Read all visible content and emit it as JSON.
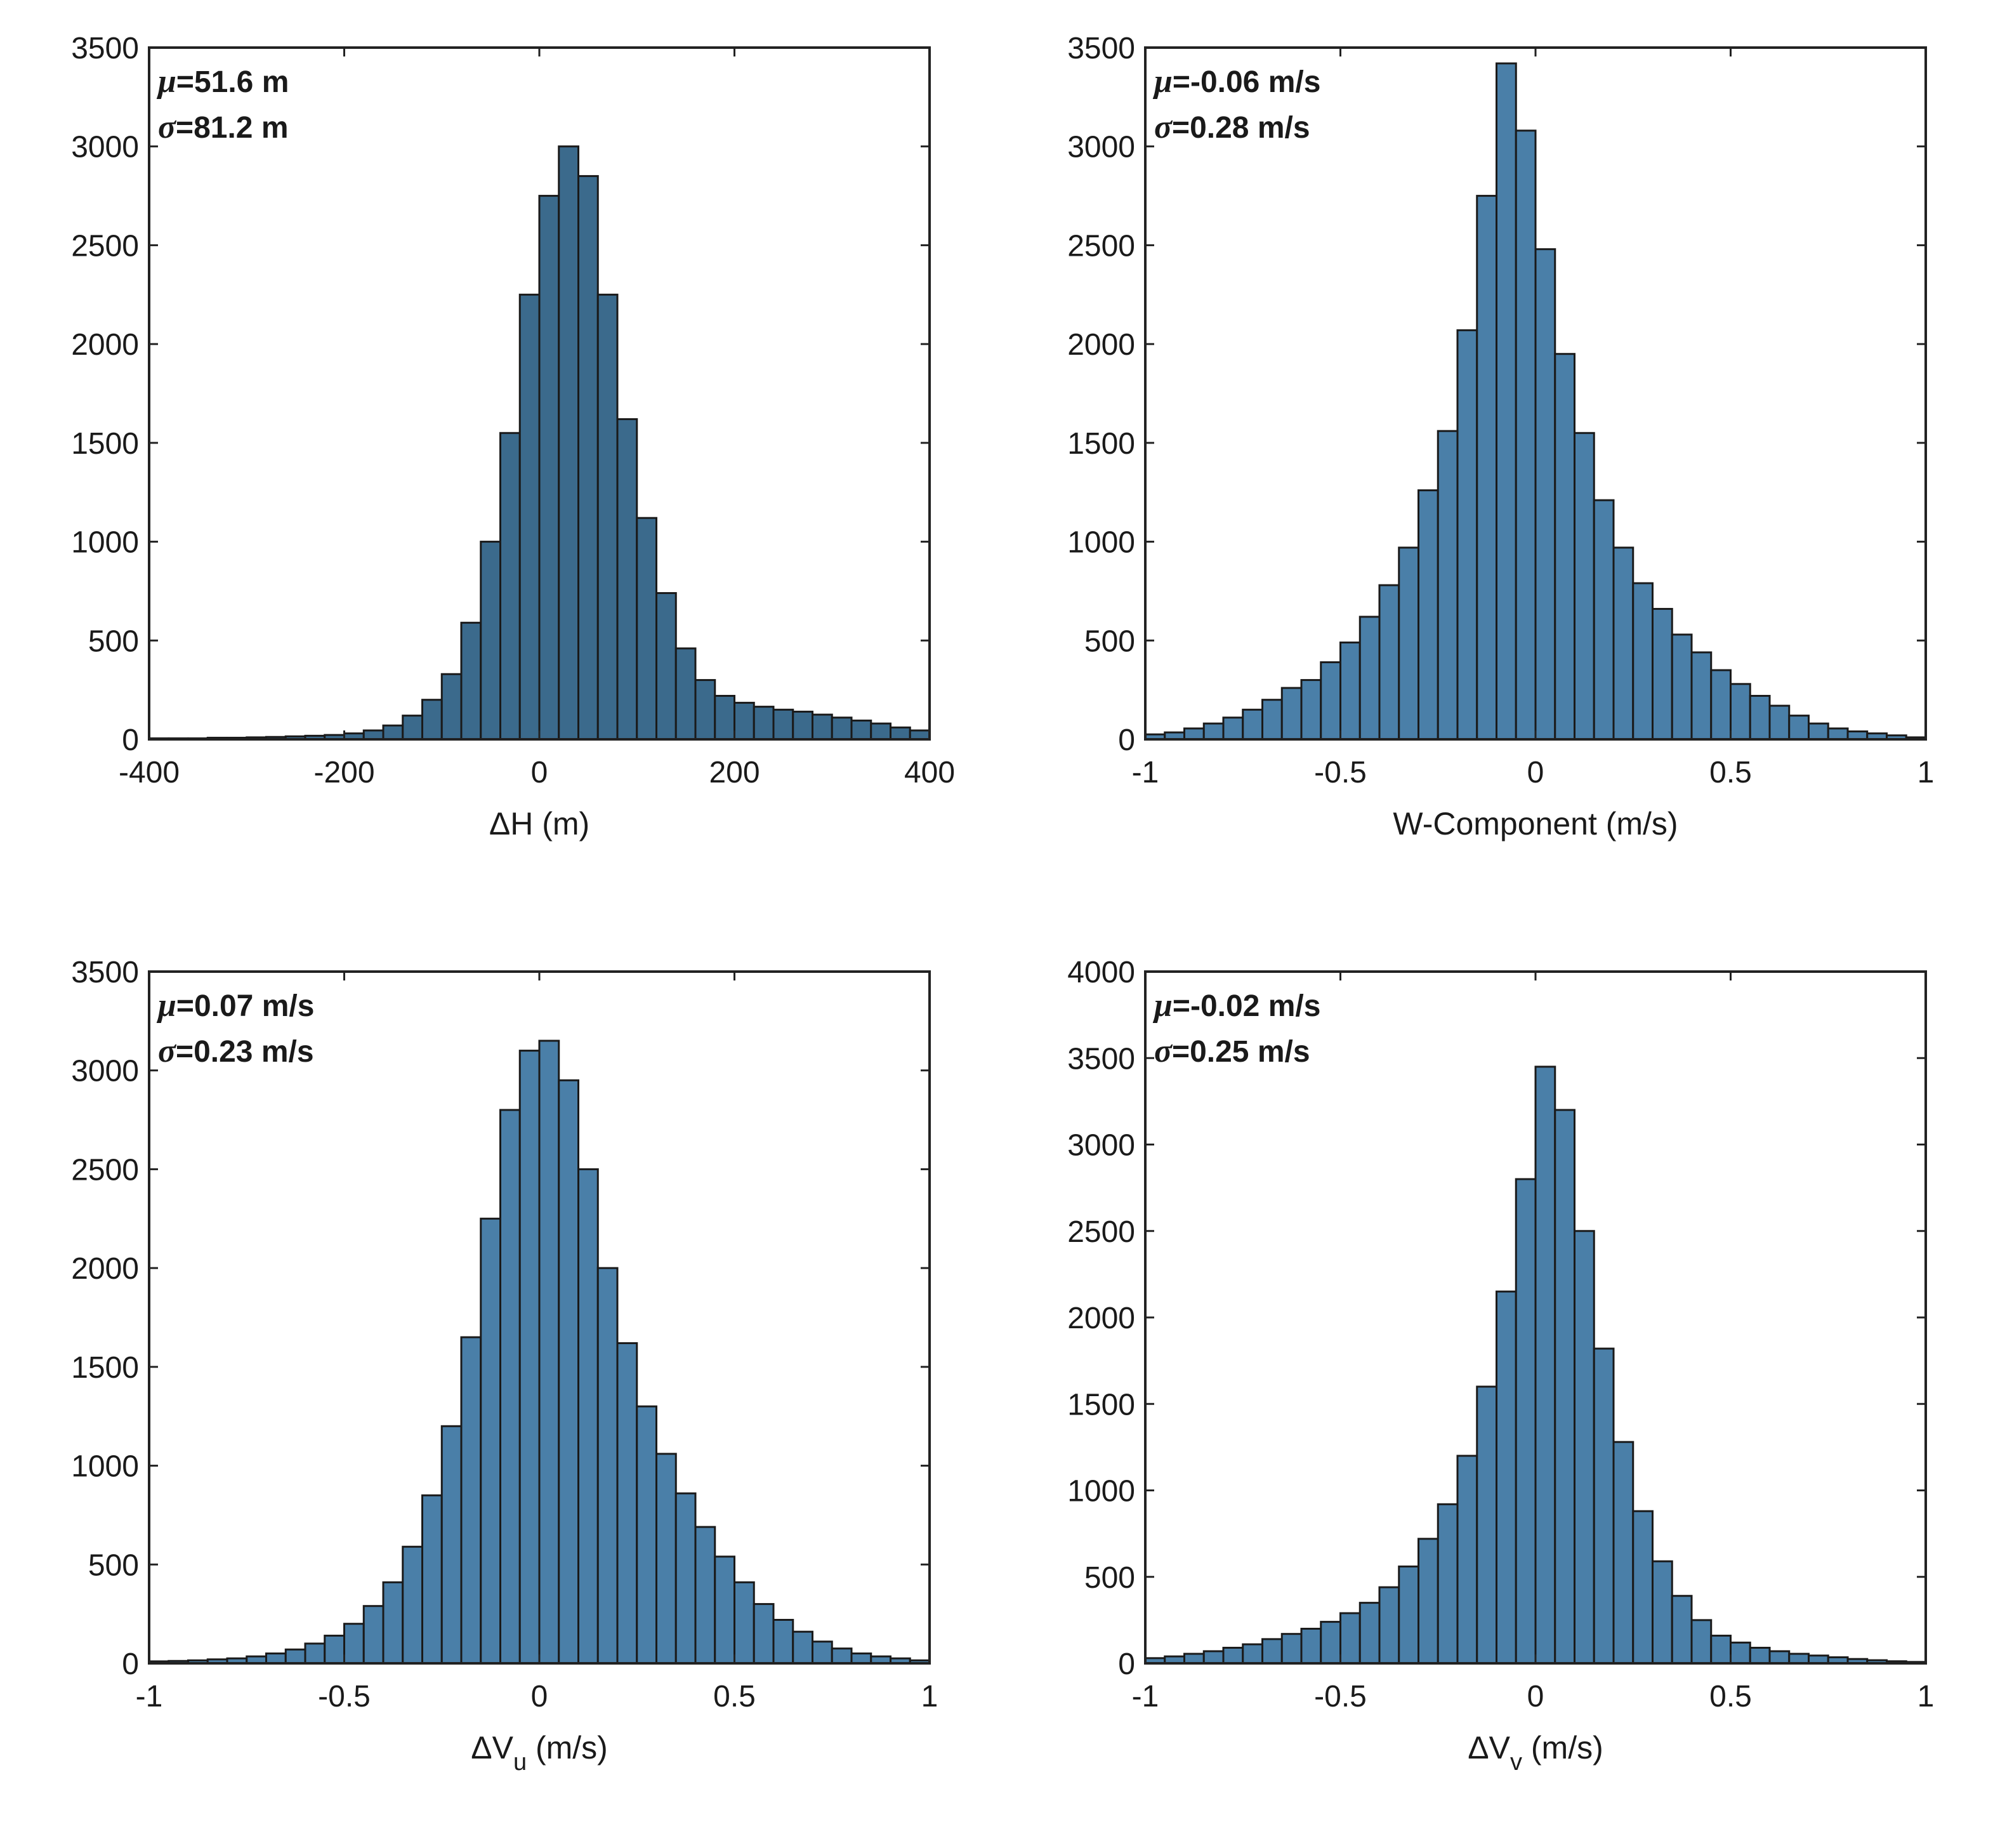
{
  "chart_data": [
    {
      "type": "bar",
      "xlabel": {
        "main": "ΔH (m)",
        "sub": ""
      },
      "xlim": [
        -400,
        400
      ],
      "ylim": [
        0,
        3500
      ],
      "xticks": [
        -400,
        -200,
        0,
        200,
        400
      ],
      "yticks": [
        0,
        500,
        1000,
        1500,
        2000,
        2500,
        3000,
        3500
      ],
      "annotation": {
        "mu_symbol": "μ",
        "mu_value": "=51.6 m",
        "sigma_symbol": "σ",
        "sigma_value": "=81.2 m"
      },
      "bar_color": "#3b6a8c",
      "x": [
        -390,
        -370,
        -350,
        -330,
        -310,
        -290,
        -270,
        -250,
        -230,
        -210,
        -190,
        -170,
        -150,
        -130,
        -110,
        -90,
        -70,
        -50,
        -30,
        -10,
        10,
        30,
        50,
        70,
        90,
        110,
        130,
        150,
        170,
        190,
        210,
        230,
        250,
        270,
        290,
        310,
        330,
        350,
        370,
        390
      ],
      "values": [
        5,
        5,
        5,
        8,
        8,
        10,
        12,
        15,
        18,
        22,
        30,
        45,
        70,
        120,
        200,
        330,
        590,
        1000,
        1550,
        2250,
        2750,
        3000,
        2850,
        2250,
        1620,
        1120,
        740,
        460,
        300,
        220,
        185,
        165,
        150,
        140,
        125,
        110,
        95,
        80,
        60,
        45
      ]
    },
    {
      "type": "bar",
      "xlabel": {
        "main": "W-Component (m/s)",
        "sub": ""
      },
      "xlim": [
        -1,
        1
      ],
      "ylim": [
        0,
        3500
      ],
      "xticks": [
        -1,
        -0.5,
        0,
        0.5,
        1
      ],
      "yticks": [
        0,
        500,
        1000,
        1500,
        2000,
        2500,
        3000,
        3500
      ],
      "annotation": {
        "mu_symbol": "μ",
        "mu_value": "=-0.06 m/s",
        "sigma_symbol": "σ",
        "sigma_value": "=0.28 m/s"
      },
      "bar_color": "#4a7fa8",
      "x": [
        -0.975,
        -0.925,
        -0.875,
        -0.825,
        -0.775,
        -0.725,
        -0.675,
        -0.625,
        -0.575,
        -0.525,
        -0.475,
        -0.425,
        -0.375,
        -0.325,
        -0.275,
        -0.225,
        -0.175,
        -0.125,
        -0.075,
        -0.025,
        0.025,
        0.075,
        0.125,
        0.175,
        0.225,
        0.275,
        0.325,
        0.375,
        0.425,
        0.475,
        0.525,
        0.575,
        0.625,
        0.675,
        0.725,
        0.775,
        0.825,
        0.875,
        0.925,
        0.975
      ],
      "values": [
        25,
        35,
        55,
        80,
        110,
        150,
        200,
        260,
        300,
        390,
        490,
        620,
        780,
        970,
        1260,
        1560,
        2070,
        2750,
        3420,
        3080,
        2480,
        1950,
        1550,
        1210,
        970,
        790,
        660,
        530,
        440,
        350,
        280,
        220,
        170,
        120,
        80,
        55,
        40,
        30,
        20,
        10
      ]
    },
    {
      "type": "bar",
      "xlabel": {
        "main": "ΔV",
        "sub": "u",
        "unit": " (m/s)"
      },
      "xlim": [
        -1,
        1
      ],
      "ylim": [
        0,
        3500
      ],
      "xticks": [
        -1,
        -0.5,
        0,
        0.5,
        1
      ],
      "yticks": [
        0,
        500,
        1000,
        1500,
        2000,
        2500,
        3000,
        3500
      ],
      "annotation": {
        "mu_symbol": "μ",
        "mu_value": "=0.07 m/s",
        "sigma_symbol": "σ",
        "sigma_value": "=0.23 m/s"
      },
      "bar_color": "#4a7fa8",
      "x": [
        -0.975,
        -0.925,
        -0.875,
        -0.825,
        -0.775,
        -0.725,
        -0.675,
        -0.625,
        -0.575,
        -0.525,
        -0.475,
        -0.425,
        -0.375,
        -0.325,
        -0.275,
        -0.225,
        -0.175,
        -0.125,
        -0.075,
        -0.025,
        0.025,
        0.075,
        0.125,
        0.175,
        0.225,
        0.275,
        0.325,
        0.375,
        0.425,
        0.475,
        0.525,
        0.575,
        0.625,
        0.675,
        0.725,
        0.775,
        0.825,
        0.875,
        0.925,
        0.975
      ],
      "values": [
        10,
        12,
        15,
        20,
        25,
        35,
        50,
        70,
        100,
        140,
        200,
        290,
        410,
        590,
        850,
        1200,
        1650,
        2250,
        2800,
        3100,
        3150,
        2950,
        2500,
        2000,
        1620,
        1300,
        1060,
        860,
        690,
        540,
        410,
        300,
        220,
        160,
        110,
        75,
        50,
        35,
        25,
        15
      ]
    },
    {
      "type": "bar",
      "xlabel": {
        "main": "ΔV",
        "sub": "v",
        "unit": " (m/s)"
      },
      "xlim": [
        -1,
        1
      ],
      "ylim": [
        0,
        4000
      ],
      "xticks": [
        -1,
        -0.5,
        0,
        0.5,
        1
      ],
      "yticks": [
        0,
        500,
        1000,
        1500,
        2000,
        2500,
        3000,
        3500,
        4000
      ],
      "annotation": {
        "mu_symbol": "μ",
        "mu_value": "=-0.02 m/s",
        "sigma_symbol": "σ",
        "sigma_value": "=0.25 m/s"
      },
      "bar_color": "#4a7fa8",
      "x": [
        -0.975,
        -0.925,
        -0.875,
        -0.825,
        -0.775,
        -0.725,
        -0.675,
        -0.625,
        -0.575,
        -0.525,
        -0.475,
        -0.425,
        -0.375,
        -0.325,
        -0.275,
        -0.225,
        -0.175,
        -0.125,
        -0.075,
        -0.025,
        0.025,
        0.075,
        0.125,
        0.175,
        0.225,
        0.275,
        0.325,
        0.375,
        0.425,
        0.475,
        0.525,
        0.575,
        0.625,
        0.675,
        0.725,
        0.775,
        0.825,
        0.875,
        0.925,
        0.975
      ],
      "values": [
        30,
        40,
        55,
        70,
        90,
        110,
        140,
        170,
        200,
        240,
        290,
        350,
        440,
        560,
        720,
        920,
        1200,
        1600,
        2150,
        2800,
        3450,
        3200,
        2500,
        1820,
        1280,
        880,
        590,
        390,
        250,
        160,
        120,
        90,
        70,
        55,
        45,
        35,
        25,
        18,
        12,
        8
      ]
    }
  ]
}
